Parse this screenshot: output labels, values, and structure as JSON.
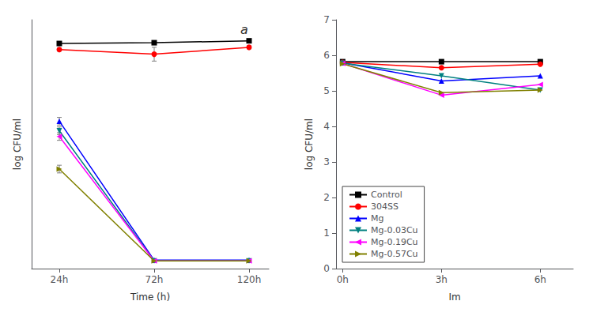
{
  "chart_data": [
    {
      "type": "line",
      "xlabel": "Time (h)",
      "ylabel": "log CFU/ml",
      "annotations": [
        "a"
      ],
      "xlim": [
        10,
        130
      ],
      "ylim": [
        0,
        6.5
      ],
      "xticks": [
        {
          "value": 24,
          "label": "24h"
        },
        {
          "value": 72,
          "label": "72h"
        },
        {
          "value": 120,
          "label": "120h"
        }
      ],
      "yticks": [],
      "tick_labels": "x",
      "grid": false,
      "series": [
        {
          "name": "Control",
          "color": "black",
          "marker": "square",
          "line_style": "solid",
          "x": [
            24,
            72,
            120
          ],
          "values": [
            5.88,
            5.9,
            5.95
          ],
          "yerr": [
            0.04,
            0.04,
            0.04
          ]
        },
        {
          "name": "304SS",
          "color": "red",
          "marker": "circle",
          "line_style": "solid",
          "x": [
            24,
            72,
            120
          ],
          "values": [
            5.72,
            5.6,
            5.78
          ],
          "yerr": [
            0.04,
            0.18,
            0.04
          ]
        },
        {
          "name": "Mg",
          "color": "blue",
          "marker": "triangle_up",
          "line_style": "solid",
          "x": [
            24,
            72,
            120
          ],
          "values": [
            3.85,
            0.22,
            0.22
          ],
          "yerr": [
            0.1,
            0.03,
            0.03
          ]
        },
        {
          "name": "Mg-0.03Cu",
          "color": "teal",
          "marker": "triangle_down",
          "line_style": "solid",
          "x": [
            24,
            72,
            120
          ],
          "values": [
            3.6,
            0.2,
            0.2
          ],
          "yerr": [
            0.1,
            0.03,
            0.03
          ]
        },
        {
          "name": "Mg-0.19Cu",
          "color": "magenta",
          "marker": "triangle_left",
          "line_style": "solid",
          "x": [
            24,
            72,
            120
          ],
          "values": [
            3.45,
            0.2,
            0.2
          ],
          "yerr": [
            0.1,
            0.03,
            0.03
          ]
        },
        {
          "name": "Mg-0.57Cu",
          "color": "#808000",
          "marker": "triangle_right",
          "line_style": "solid",
          "x": [
            24,
            72,
            120
          ],
          "values": [
            2.6,
            0.2,
            0.2
          ],
          "yerr": [
            0.1,
            0.03,
            0.03
          ]
        }
      ]
    },
    {
      "type": "line",
      "xlabel": "Im",
      "ylabel": "log CFU/ml",
      "xlim": [
        -0.2,
        7.0
      ],
      "ylim": [
        0,
        7
      ],
      "xticks": [
        {
          "value": 0,
          "label": "0h"
        },
        {
          "value": 3,
          "label": "3h"
        },
        {
          "value": 6,
          "label": "6h"
        }
      ],
      "yticks": [
        0,
        1,
        2,
        3,
        4,
        5,
        6,
        7
      ],
      "grid": false,
      "legend": "lower left",
      "series": [
        {
          "name": "Control",
          "color": "black",
          "marker": "square",
          "line_style": "solid",
          "x": [
            0,
            3,
            6
          ],
          "values": [
            5.82,
            5.82,
            5.82
          ]
        },
        {
          "name": "304SS",
          "color": "red",
          "marker": "circle",
          "line_style": "solid",
          "x": [
            0,
            3,
            6
          ],
          "values": [
            5.8,
            5.65,
            5.75
          ]
        },
        {
          "name": "Mg",
          "color": "blue",
          "marker": "triangle_up",
          "line_style": "solid",
          "x": [
            0,
            3,
            6
          ],
          "values": [
            5.79,
            5.28,
            5.42
          ]
        },
        {
          "name": "Mg-0.03Cu",
          "color": "teal",
          "marker": "triangle_down",
          "line_style": "solid",
          "x": [
            0,
            3,
            6
          ],
          "values": [
            5.78,
            5.42,
            5.02
          ]
        },
        {
          "name": "Mg-0.19Cu",
          "color": "magenta",
          "marker": "triangle_left",
          "line_style": "solid",
          "x": [
            0,
            3,
            6
          ],
          "values": [
            5.77,
            4.88,
            5.18
          ]
        },
        {
          "name": "Mg-0.57Cu",
          "color": "#808000",
          "marker": "triangle_right",
          "line_style": "solid",
          "x": [
            0,
            3,
            6
          ],
          "values": [
            5.76,
            4.95,
            5.02
          ]
        }
      ]
    }
  ]
}
